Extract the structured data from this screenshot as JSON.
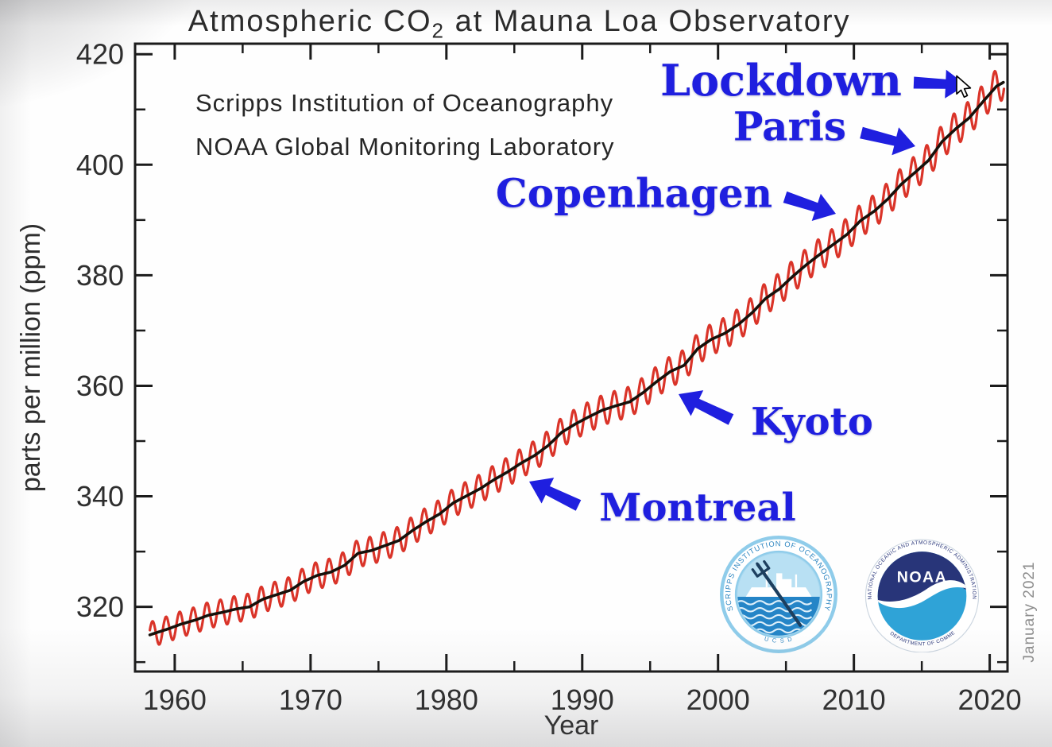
{
  "title": {
    "pre": "Atmospheric CO",
    "sub": "2",
    "post": " at Mauna Loa Observatory"
  },
  "credits": [
    "Scripps Institution of Oceanography",
    "NOAA Global Monitoring Laboratory"
  ],
  "date_label": "January 2021",
  "colors": {
    "seasonal_line": "#d92c20",
    "trend_line": "#17110b",
    "annotation_blue": "#1f1fdf",
    "axis": "#1b1b1b",
    "tick_text": "#2e2e2e",
    "date_text": "#8d8d8d"
  },
  "chart_data": {
    "type": "line",
    "title": "Atmospheric CO2 at Mauna Loa Observatory",
    "xlabel": "Year",
    "ylabel": "parts per million (ppm)",
    "xlim": [
      1957.08,
      2021.31
    ],
    "ylim": [
      308.3,
      421.9
    ],
    "grid": false,
    "x_major_ticks": [
      1960,
      1970,
      1980,
      1990,
      2000,
      2010,
      2020
    ],
    "x_minor_ticks": [
      1965,
      1975,
      1985,
      1995,
      2005,
      2015
    ],
    "y_major_ticks": [
      320,
      340,
      360,
      380,
      400,
      420
    ],
    "y_minor_ticks": [
      310,
      330,
      350,
      370,
      390,
      410
    ],
    "series": [
      {
        "name": "monthly mean CO2 (red, seasonal cycle around trend)",
        "color": "#d92c20",
        "derived_from": "trend",
        "seasonal_amplitude_ppm_start": 2.3,
        "seasonal_amplitude_ppm_end": 3.1,
        "peak_month": "May",
        "trough_month": "October",
        "span_years": [
          1958.17,
          2021.08
        ]
      },
      {
        "name": "seasonally adjusted trend (black)",
        "color": "#17110b",
        "start_year": 1958,
        "end_year": 2021,
        "annual_values": [
          315.2,
          316.0,
          316.9,
          317.6,
          318.5,
          319.0,
          319.6,
          320.0,
          321.4,
          322.2,
          323.0,
          324.6,
          325.7,
          326.3,
          327.5,
          329.7,
          330.2,
          331.1,
          332.0,
          333.8,
          335.4,
          336.8,
          338.8,
          340.1,
          341.4,
          343.0,
          344.4,
          346.0,
          347.4,
          349.2,
          351.6,
          353.1,
          354.4,
          355.6,
          356.4,
          357.1,
          358.8,
          360.8,
          362.6,
          363.7,
          366.7,
          368.4,
          369.5,
          371.1,
          373.2,
          375.8,
          377.5,
          379.8,
          381.9,
          383.8,
          385.6,
          387.4,
          389.9,
          391.6,
          393.8,
          396.5,
          398.6,
          400.8,
          404.2,
          406.5,
          408.5,
          411.4,
          414.2,
          415.6
        ]
      }
    ],
    "annotations": [
      {
        "label": "Lockdown",
        "arrow_points_to": {
          "year": 2020,
          "ppm": 414
        }
      },
      {
        "label": "Paris",
        "arrow_points_to": {
          "year": 2015,
          "ppm": 401
        }
      },
      {
        "label": "Copenhagen",
        "arrow_points_to": {
          "year": 2009,
          "ppm": 388
        }
      },
      {
        "label": "Kyoto",
        "arrow_points_to": {
          "year": 1997,
          "ppm": 364
        }
      },
      {
        "label": "Montreal",
        "arrow_points_to": {
          "year": 1987,
          "ppm": 346
        }
      }
    ]
  },
  "logos": {
    "scripps": {
      "ring_text": "SCRIPPS INSTITUTION OF OCEANOGRAPHY",
      "bottom_text": "U C S D"
    },
    "noaa": {
      "wordmark": "NOAA",
      "ring_text_top": "NATIONAL OCEANIC AND ATMOSPHERIC ADMINISTRATION",
      "ring_text_bottom": "U.S. DEPARTMENT OF COMMERCE"
    }
  }
}
